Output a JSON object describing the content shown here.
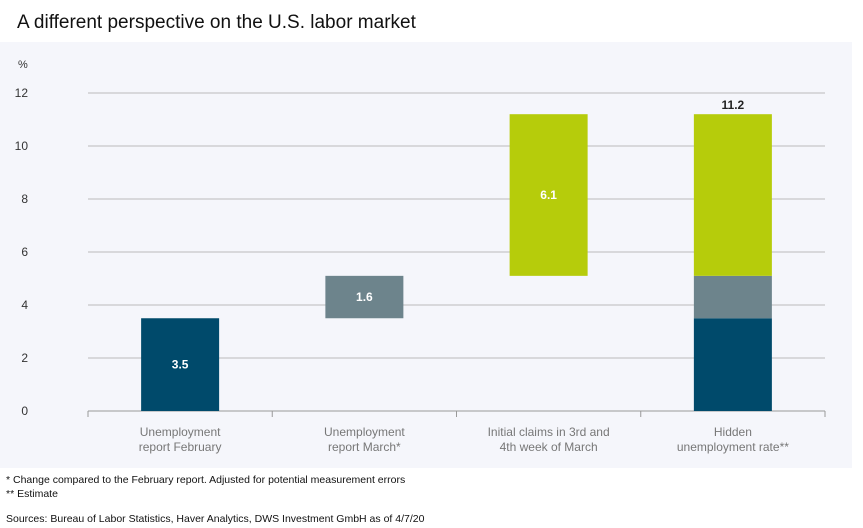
{
  "title": "A different perspective on the U.S. labor market",
  "chart_data": {
    "type": "bar",
    "subtype": "waterfall",
    "ylabel": "%",
    "ylim": [
      0,
      12
    ],
    "yticks": [
      0,
      2,
      4,
      6,
      8,
      10,
      12
    ],
    "grid": true,
    "categories": [
      "Unemployment\nreport February",
      "Unemployment\nreport March*",
      "Initial claims in 3rd and\n4th week of March",
      "Hidden\nunemployment rate**"
    ],
    "bars": [
      {
        "category": 0,
        "segments": [
          {
            "from": 0,
            "to": 3.5,
            "color": "#004a6b"
          }
        ],
        "label": "3.5"
      },
      {
        "category": 1,
        "segments": [
          {
            "from": 3.5,
            "to": 5.1,
            "color": "#6d848c"
          }
        ],
        "label": "1.6"
      },
      {
        "category": 2,
        "segments": [
          {
            "from": 5.1,
            "to": 11.2,
            "color": "#b6cc0b"
          }
        ],
        "label": "6.1"
      },
      {
        "category": 3,
        "segments": [
          {
            "from": 0,
            "to": 3.5,
            "color": "#004a6b"
          },
          {
            "from": 3.5,
            "to": 5.1,
            "color": "#6d848c"
          },
          {
            "from": 5.1,
            "to": 11.2,
            "color": "#b6cc0b"
          }
        ],
        "label": "11.2",
        "label_position": "top"
      }
    ]
  },
  "footnotes": [
    "* Change compared to the February report. Adjusted for potential measurement errors",
    "** Estimate"
  ],
  "sources": "Sources: Bureau of Labor Statistics, Haver Analytics, DWS Investment GmbH as of 4/7/20"
}
